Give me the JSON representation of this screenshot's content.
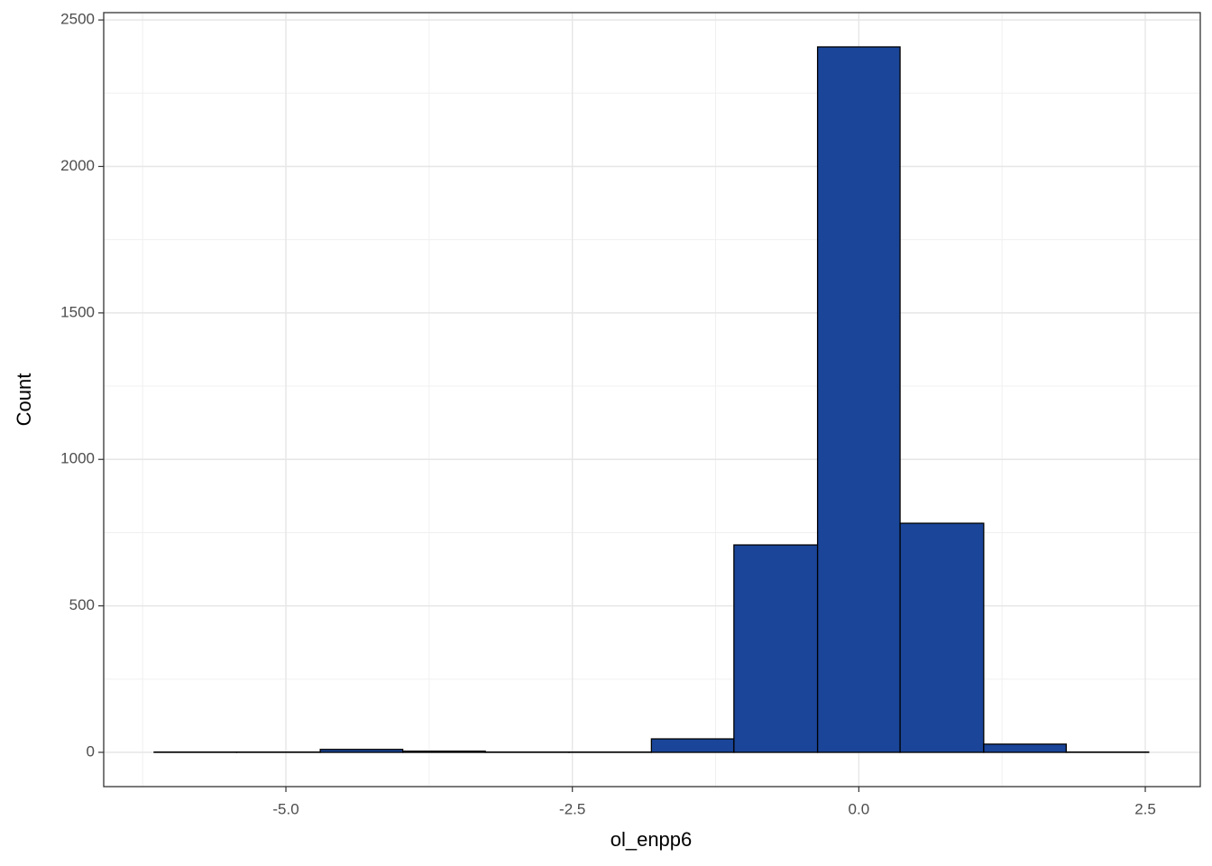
{
  "chart_data": {
    "type": "histogram",
    "x_label": "ol_enpp6",
    "y_label": "Count",
    "bins": [
      -6.15,
      -5.43,
      -4.7,
      -3.98,
      -3.26,
      -2.53,
      -1.81,
      -1.09,
      -0.36,
      0.36,
      1.09,
      1.81,
      2.53
    ],
    "counts": [
      1,
      1,
      10,
      4,
      1,
      1,
      46,
      708,
      2408,
      782,
      28,
      1
    ],
    "color": "#1a4599",
    "xlim": [
      -6.59,
      2.98
    ],
    "xticks": [
      {
        "value": -5,
        "label": "-5.0"
      },
      {
        "value": -2.5,
        "label": "-2.5"
      },
      {
        "value": 0,
        "label": "0.0"
      },
      2.5
    ],
    "x_minor_ticks": [
      -6.25,
      -3.75,
      -1.25,
      1.25
    ],
    "ylim": [
      -117,
      2525
    ],
    "yticks": [
      0,
      500,
      1000,
      1500,
      2000,
      2500
    ],
    "y_minor_ticks": [
      250,
      750,
      1250,
      1750,
      2250
    ],
    "grid": true
  }
}
